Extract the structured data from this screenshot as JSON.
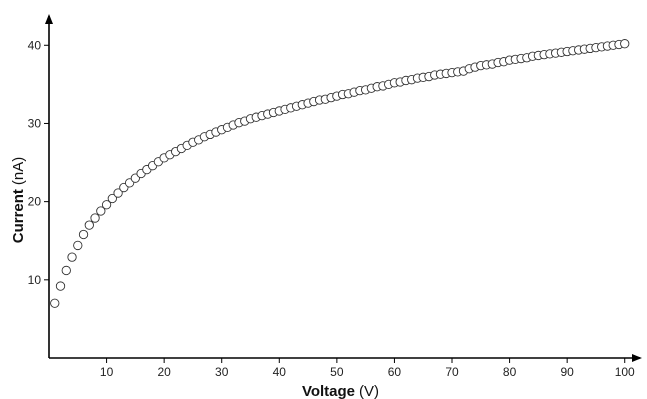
{
  "chart_data": {
    "type": "scatter",
    "title": "",
    "xlabel_main": "Voltage",
    "xlabel_unit": "(V)",
    "ylabel_main": "Current",
    "ylabel_unit": "(nA)",
    "xlim": [
      0,
      103
    ],
    "ylim": [
      0,
      44
    ],
    "xticks": [
      10,
      20,
      30,
      40,
      50,
      60,
      70,
      80,
      90,
      100
    ],
    "yticks": [
      10,
      20,
      30,
      40
    ],
    "grid": false,
    "legend": "none",
    "marker": "open-circle",
    "colors": {
      "marker_stroke": "#333333",
      "marker_fill": "#ffffff",
      "axis": "#000000"
    },
    "series": [
      {
        "x": [
          1,
          2,
          3,
          4,
          5,
          6,
          7,
          8,
          9,
          10,
          11,
          12,
          13,
          14,
          15,
          16,
          17,
          18,
          19,
          20,
          21,
          22,
          23,
          24,
          25,
          26,
          27,
          28,
          29,
          30,
          31,
          32,
          33,
          34,
          35,
          36,
          37,
          38,
          39,
          40,
          41,
          42,
          43,
          44,
          45,
          46,
          47,
          48,
          49,
          50,
          51,
          52,
          53,
          54,
          55,
          56,
          57,
          58,
          59,
          60,
          61,
          62,
          63,
          64,
          65,
          66,
          67,
          68,
          69,
          70,
          71,
          72,
          73,
          74,
          75,
          76,
          77,
          78,
          79,
          80,
          81,
          82,
          83,
          84,
          85,
          86,
          87,
          88,
          89,
          90,
          91,
          92,
          93,
          94,
          95,
          96,
          97,
          98,
          99,
          100
        ],
        "y": [
          7.0,
          9.2,
          11.2,
          12.9,
          14.4,
          15.8,
          17.0,
          17.9,
          18.8,
          19.6,
          20.4,
          21.1,
          21.8,
          22.4,
          23.0,
          23.6,
          24.1,
          24.6,
          25.1,
          25.6,
          26.0,
          26.4,
          26.8,
          27.2,
          27.6,
          27.9,
          28.3,
          28.6,
          28.9,
          29.2,
          29.5,
          29.8,
          30.1,
          30.3,
          30.6,
          30.8,
          31.0,
          31.2,
          31.4,
          31.6,
          31.8,
          32.0,
          32.2,
          32.4,
          32.6,
          32.8,
          33.0,
          33.1,
          33.3,
          33.5,
          33.7,
          33.8,
          34.0,
          34.2,
          34.3,
          34.5,
          34.7,
          34.8,
          35.0,
          35.2,
          35.3,
          35.5,
          35.6,
          35.8,
          35.9,
          36.0,
          36.2,
          36.3,
          36.4,
          36.5,
          36.6,
          36.7,
          37.0,
          37.2,
          37.4,
          37.5,
          37.6,
          37.8,
          37.9,
          38.1,
          38.2,
          38.3,
          38.4,
          38.6,
          38.7,
          38.8,
          38.9,
          39.0,
          39.1,
          39.2,
          39.3,
          39.4,
          39.5,
          39.6,
          39.7,
          39.8,
          39.9,
          40.0,
          40.1,
          40.2
        ]
      }
    ]
  }
}
